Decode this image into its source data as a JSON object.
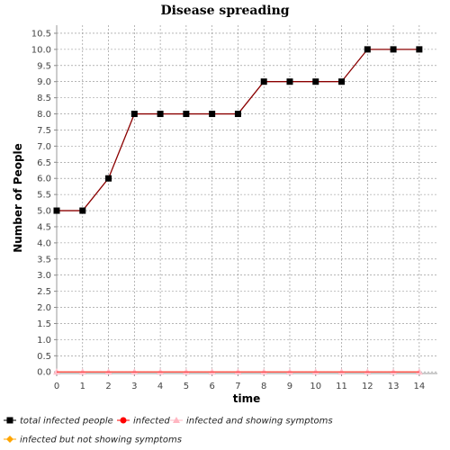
{
  "chart_data": {
    "type": "line",
    "title": "Disease spreading",
    "xlabel": "time",
    "ylabel": "Number of People",
    "x": [
      0,
      1,
      2,
      3,
      4,
      5,
      6,
      7,
      8,
      9,
      10,
      11,
      12,
      13,
      14
    ],
    "xlim": [
      0,
      14.7
    ],
    "ylim": [
      -0.05,
      10.75
    ],
    "yticks": [
      0.0,
      0.5,
      1.0,
      1.5,
      2.0,
      2.5,
      3.0,
      3.5,
      4.0,
      4.5,
      5.0,
      5.5,
      6.0,
      6.5,
      7.0,
      7.5,
      8.0,
      8.5,
      9.0,
      9.5,
      10.0,
      10.5
    ],
    "ytick_labels": [
      "0.0",
      "0.5",
      "1.0",
      "1.5",
      "2.0",
      "2.5",
      "3.0",
      "3.5",
      "4.0",
      "4.5",
      "5.0",
      "5.5",
      "6.0",
      "6.5",
      "7.0",
      "7.5",
      "8.0",
      "8.5",
      "9.0",
      "9.5",
      "10.0",
      "10.5"
    ],
    "xtick_labels": [
      "0",
      "1",
      "2",
      "3",
      "4",
      "5",
      "6",
      "7",
      "8",
      "9",
      "10",
      "11",
      "12",
      "13",
      "14"
    ],
    "grid": true,
    "legend_position": "bottom",
    "series": [
      {
        "name": "total infected people",
        "values": [
          5,
          5,
          6,
          8,
          8,
          8,
          8,
          8,
          9,
          9,
          9,
          9,
          10,
          10,
          10
        ],
        "color": "#000000",
        "line_color": "#8b0000",
        "marker": "square"
      },
      {
        "name": "infected",
        "values": [
          0,
          0,
          0,
          0,
          0,
          0,
          0,
          0,
          0,
          0,
          0,
          0,
          0,
          0,
          0
        ],
        "color": "#ff0000",
        "marker": "circle"
      },
      {
        "name": "infected and showing symptoms",
        "values": [
          0,
          0,
          0,
          0,
          0,
          0,
          0,
          0,
          0,
          0,
          0,
          0,
          0,
          0,
          0
        ],
        "color": "#ffb6c1",
        "marker": "triangle"
      },
      {
        "name": "infected but not showing symptoms",
        "values": [
          0,
          0,
          0,
          0,
          0,
          0,
          0,
          0,
          0,
          0,
          0,
          0,
          0,
          0,
          0
        ],
        "color": "#ffa500",
        "marker": "diamond"
      }
    ]
  }
}
